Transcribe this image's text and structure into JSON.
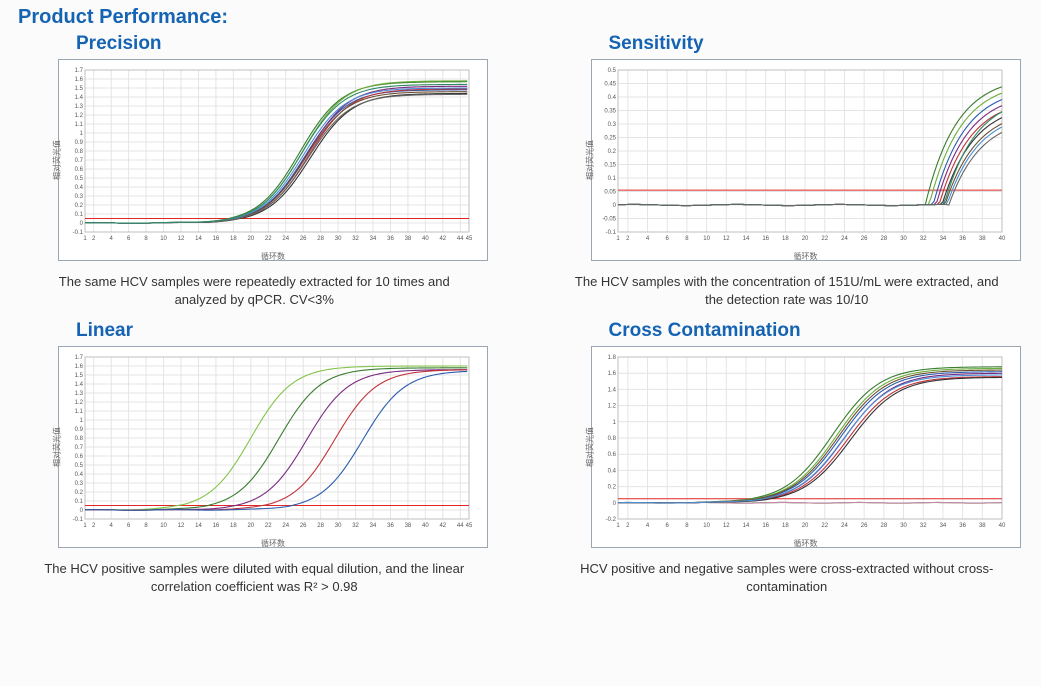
{
  "main_title": "Product Performance:",
  "axis_label_x": "循环数",
  "axis_label_y": "相对荧光值",
  "panels": {
    "precision": {
      "title": "Precision",
      "caption": "The same HCV samples were repeatedly extracted for 10 times and analyzed by qPCR. CV<3%",
      "chart": {
        "type": "line",
        "xlim": [
          1,
          45
        ],
        "ylim": [
          -0.1,
          1.7
        ],
        "xticks": [
          1,
          2,
          4,
          6,
          8,
          10,
          12,
          14,
          16,
          18,
          20,
          22,
          24,
          26,
          28,
          30,
          32,
          34,
          36,
          38,
          40,
          42,
          44,
          45
        ],
        "yticks": [
          -0.1,
          0,
          0.1,
          0.2,
          0.3,
          0.4,
          0.5,
          0.6,
          0.7,
          0.8,
          0.9,
          1.0,
          1.1,
          1.2,
          1.3,
          1.4,
          1.5,
          1.6,
          1.7
        ],
        "threshold_y": 0.05,
        "series": [
          {
            "color": "#3a7d2e",
            "ct": 25.6,
            "plateau": 1.57
          },
          {
            "color": "#6aae3c",
            "ct": 25.9,
            "plateau": 1.58
          },
          {
            "color": "#2a5cae",
            "ct": 26.2,
            "plateau": 1.48
          },
          {
            "color": "#7a2a80",
            "ct": 26.4,
            "plateau": 1.52
          },
          {
            "color": "#c0333a",
            "ct": 26.6,
            "plateau": 1.49
          },
          {
            "color": "#333333",
            "ct": 26.8,
            "plateau": 1.44
          },
          {
            "color": "#6f5030",
            "ct": 26.3,
            "plateau": 1.46
          },
          {
            "color": "#4a90d6",
            "ct": 26.0,
            "plateau": 1.5
          },
          {
            "color": "#666666",
            "ct": 26.5,
            "plateau": 1.43
          },
          {
            "color": "#2e8a66",
            "ct": 25.8,
            "plateau": 1.54
          }
        ]
      }
    },
    "sensitivity": {
      "title": "Sensitivity",
      "caption": "The HCV samples with the concentration of 151U/mL were extracted, and the detection rate was 10/10",
      "chart": {
        "type": "line",
        "xlim": [
          1,
          40
        ],
        "ylim": [
          -0.1,
          0.5
        ],
        "xticks": [
          1,
          2,
          4,
          6,
          8,
          10,
          12,
          14,
          16,
          18,
          20,
          22,
          24,
          26,
          28,
          30,
          32,
          34,
          36,
          38,
          40
        ],
        "yticks": [
          -0.1,
          -0.05,
          0,
          0.05,
          0.1,
          0.15,
          0.2,
          0.25,
          0.3,
          0.35,
          0.4,
          0.45,
          0.5
        ],
        "threshold_y": 0.055,
        "rising": true,
        "series": [
          {
            "color": "#3a7d2e",
            "ct": 32.2,
            "end": 0.48
          },
          {
            "color": "#6aae3c",
            "ct": 32.6,
            "end": 0.46
          },
          {
            "color": "#2a5cae",
            "ct": 33.0,
            "end": 0.44
          },
          {
            "color": "#7a2a80",
            "ct": 33.3,
            "end": 0.42
          },
          {
            "color": "#c0333a",
            "ct": 33.6,
            "end": 0.4
          },
          {
            "color": "#333333",
            "ct": 33.9,
            "end": 0.38
          },
          {
            "color": "#6f5030",
            "ct": 34.2,
            "end": 0.36
          },
          {
            "color": "#4a90d6",
            "ct": 34.4,
            "end": 0.35
          },
          {
            "color": "#2e8a66",
            "ct": 34.1,
            "end": 0.41
          },
          {
            "color": "#666666",
            "ct": 34.6,
            "end": 0.33
          }
        ]
      }
    },
    "linear": {
      "title": "Linear",
      "caption": "The HCV positive samples were diluted with equal dilution, and the linear correlation coefficient was R² > 0.98",
      "chart": {
        "type": "line",
        "xlim": [
          1,
          45
        ],
        "ylim": [
          -0.1,
          1.7
        ],
        "xticks": [
          1,
          2,
          4,
          6,
          8,
          10,
          12,
          14,
          16,
          18,
          20,
          22,
          24,
          26,
          28,
          30,
          32,
          34,
          36,
          38,
          40,
          42,
          44,
          45
        ],
        "yticks": [
          -0.1,
          0,
          0.1,
          0.2,
          0.3,
          0.4,
          0.5,
          0.6,
          0.7,
          0.8,
          0.9,
          1.0,
          1.1,
          1.2,
          1.3,
          1.4,
          1.5,
          1.6,
          1.7
        ],
        "threshold_y": 0.05,
        "series": [
          {
            "color": "#84c44a",
            "ct": 20.0,
            "plateau": 1.6
          },
          {
            "color": "#3a7d2e",
            "ct": 23.2,
            "plateau": 1.58
          },
          {
            "color": "#7a2a80",
            "ct": 26.4,
            "plateau": 1.56
          },
          {
            "color": "#c0333a",
            "ct": 29.6,
            "plateau": 1.56
          },
          {
            "color": "#2a5cae",
            "ct": 32.8,
            "plateau": 1.55
          }
        ]
      }
    },
    "cross": {
      "title": "Cross Contamination",
      "caption": "HCV positive and negative samples were cross-extracted without cross-contamination",
      "chart": {
        "type": "line",
        "xlim": [
          1,
          40
        ],
        "ylim": [
          -0.2,
          1.8
        ],
        "xticks": [
          1,
          2,
          4,
          6,
          8,
          10,
          12,
          14,
          16,
          18,
          20,
          22,
          24,
          26,
          28,
          30,
          32,
          34,
          36,
          38,
          40
        ],
        "yticks": [
          -0.2,
          0,
          0.2,
          0.4,
          0.6,
          0.8,
          1.0,
          1.2,
          1.4,
          1.6,
          1.8
        ],
        "threshold_y": 0.05,
        "series": [
          {
            "color": "#3a7d2e",
            "ct": 22.8,
            "plateau": 1.68
          },
          {
            "color": "#6aae3c",
            "ct": 23.2,
            "plateau": 1.66
          },
          {
            "color": "#2a5cae",
            "ct": 23.6,
            "plateau": 1.62
          },
          {
            "color": "#7a2a80",
            "ct": 24.0,
            "plateau": 1.6
          },
          {
            "color": "#c0333a",
            "ct": 24.3,
            "plateau": 1.56
          },
          {
            "color": "#333333",
            "ct": 24.6,
            "plateau": 1.55
          },
          {
            "color": "#6f5030",
            "ct": 23.4,
            "plateau": 1.64
          },
          {
            "color": "#4a90d6",
            "ct": 23.9,
            "plateau": 1.58
          }
        ],
        "flat_series": [
          {
            "color": "#84c44a"
          },
          {
            "color": "#8ab4e0"
          },
          {
            "color": "#999999"
          },
          {
            "color": "#c58aa0"
          }
        ]
      }
    }
  },
  "style": {
    "chart_bg": "#ffffff",
    "chart_border": "#9aa6b2",
    "grid_color": "#e4e4e4",
    "tick_color": "#555555",
    "threshold_color": "#e02626",
    "line_width": 1.1
  }
}
